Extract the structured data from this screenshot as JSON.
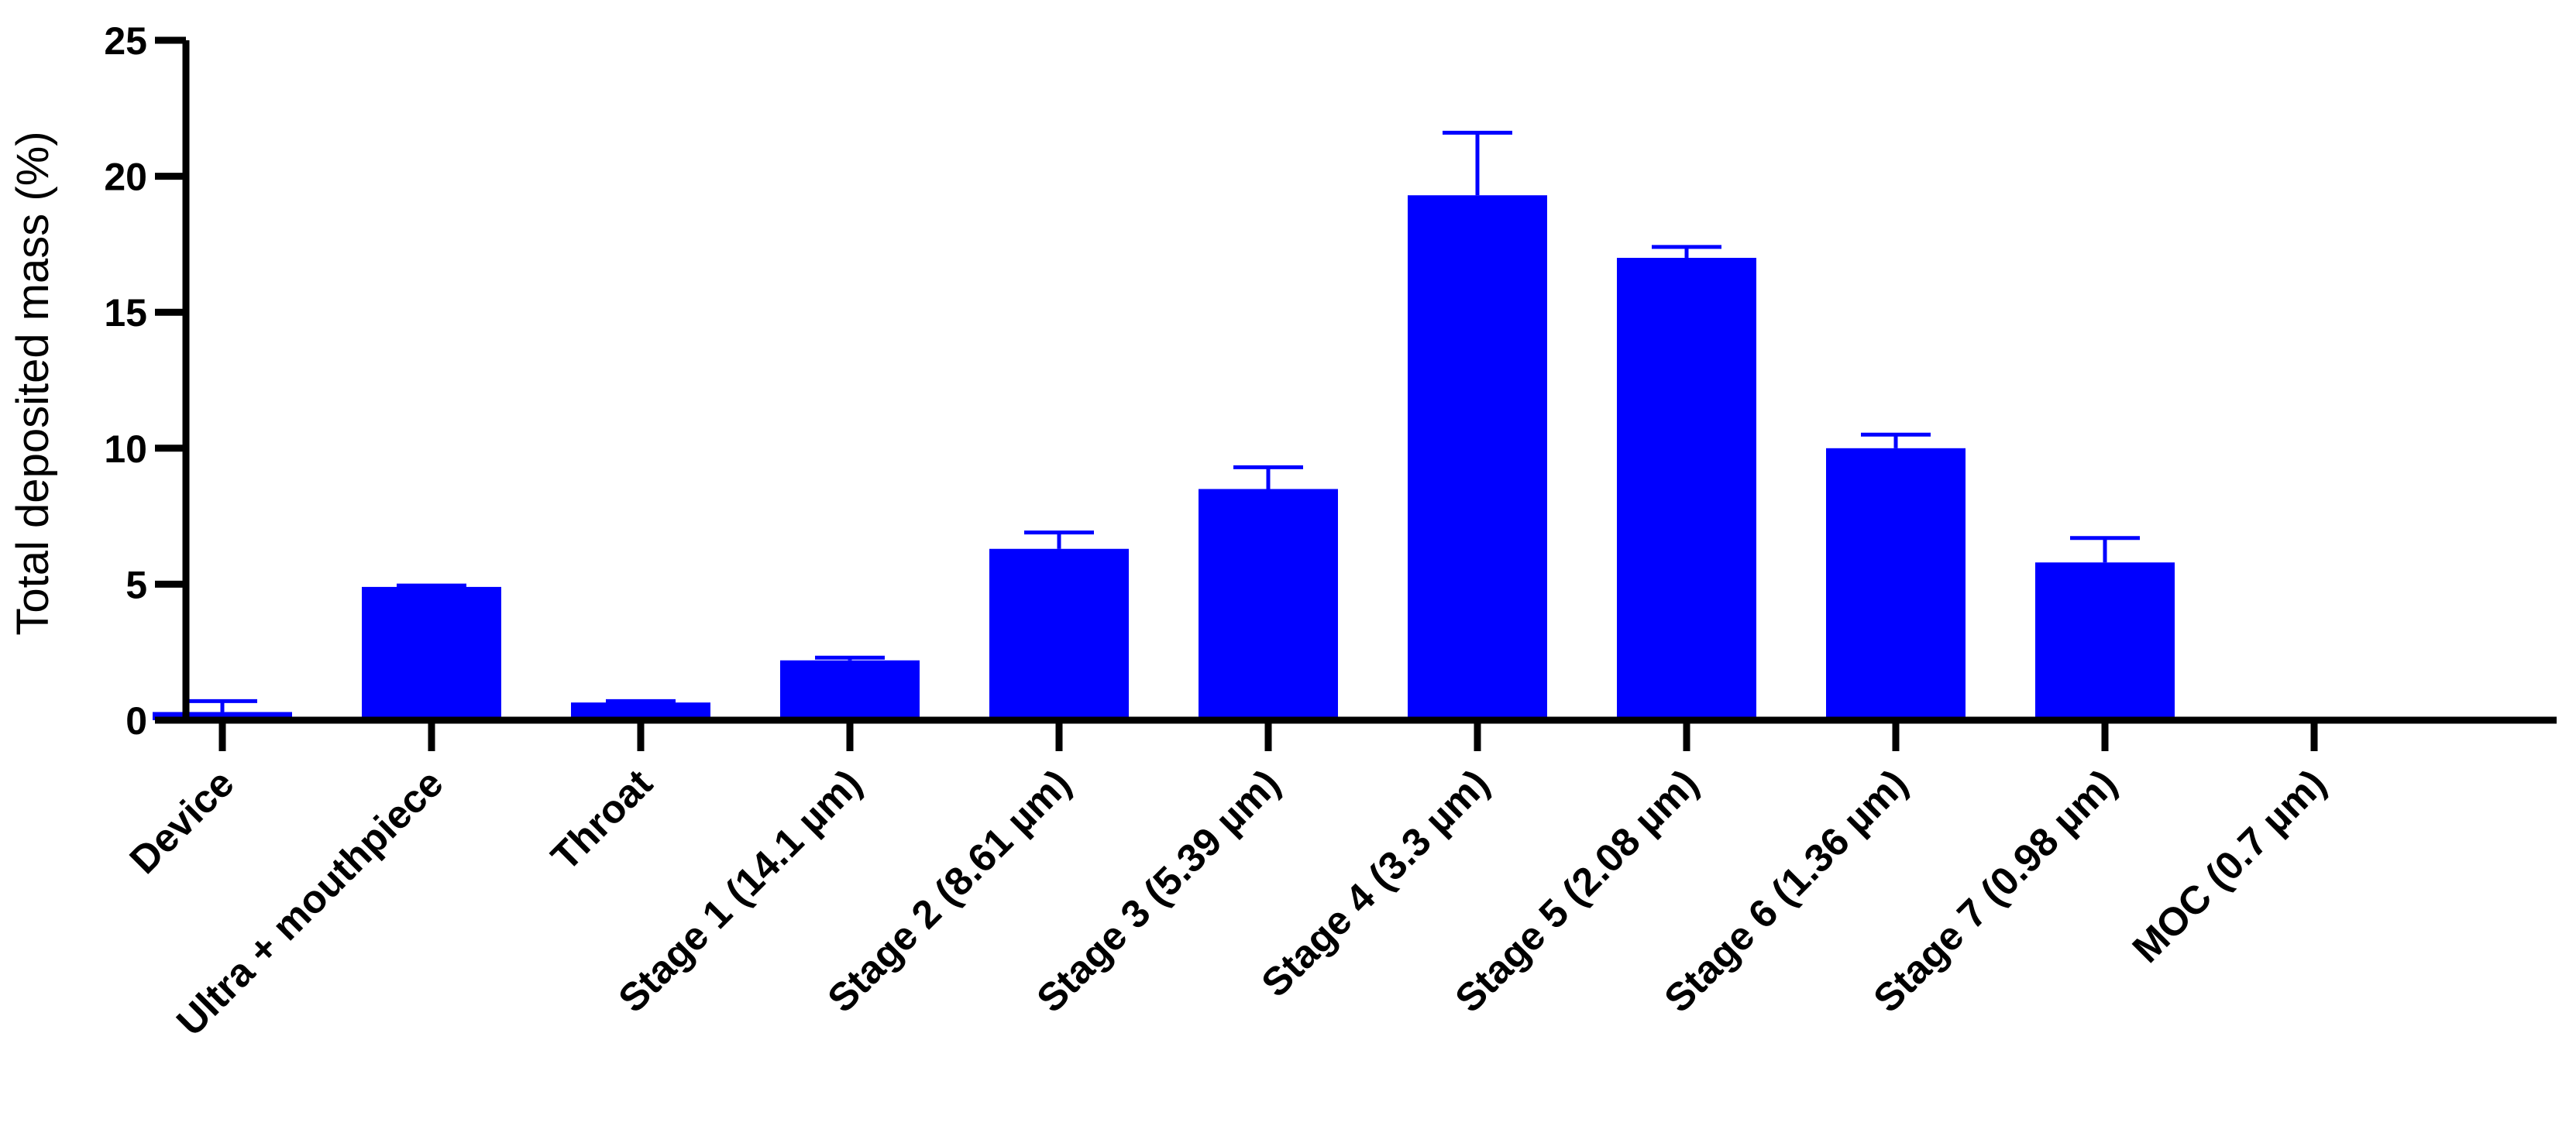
{
  "chart_data": {
    "type": "bar",
    "title": "",
    "xlabel": "",
    "ylabel": "Total deposited mass (%)",
    "ylim": [
      0,
      25
    ],
    "yticks": [
      0,
      5,
      10,
      15,
      20,
      25
    ],
    "grid": false,
    "legend": "none",
    "bar_color": "#0000ff",
    "categories": [
      "Device",
      "Ultra + mouthpiece",
      "Throat",
      "Stage 1 (14.1 µm)",
      "Stage 2 (8.61 µm)",
      "Stage 3 (5.39 µm)",
      "Stage 4 (3.3 µm)",
      "Stage 5 (2.08 µm)",
      "Stage 6 (1.36 µm)",
      "Stage 7 (0.98 µm)",
      "MOC (0.7 µm)"
    ],
    "values": [
      0.3,
      4.9,
      0.65,
      2.2,
      6.3,
      8.5,
      19.3,
      17.0,
      10.0,
      5.8,
      0
    ],
    "error_upper": [
      0.7,
      4.95,
      0.7,
      2.3,
      6.9,
      9.3,
      21.6,
      17.4,
      10.5,
      6.7,
      0
    ]
  }
}
